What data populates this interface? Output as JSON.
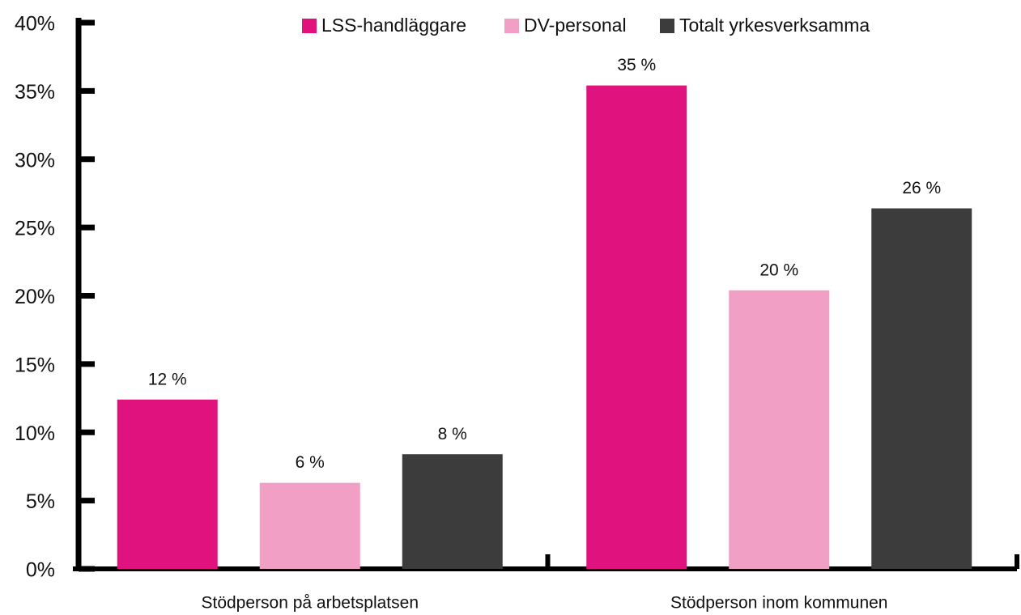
{
  "chart_data": {
    "type": "bar",
    "categories": [
      "Stödperson på arbetsplatsen",
      "Stödperson inom kommunen"
    ],
    "series": [
      {
        "name": "LSS-handläggare",
        "color": "#e0137e",
        "values": [
          12.4,
          35.4
        ],
        "value_labels": [
          "12 %",
          "35 %"
        ]
      },
      {
        "name": "DV-personal",
        "color": "#f29fc5",
        "values": [
          6.3,
          20.4
        ],
        "value_labels": [
          "6 %",
          "20 %"
        ]
      },
      {
        "name": "Totalt yrkesverksamma",
        "color": "#3c3c3c",
        "values": [
          8.4,
          26.4
        ],
        "value_labels": [
          "8 %",
          "26 %"
        ]
      }
    ],
    "ylim": [
      0,
      40
    ],
    "yticks": [
      {
        "value": 0,
        "label": "0%"
      },
      {
        "value": 5,
        "label": "5%"
      },
      {
        "value": 10,
        "label": "10%"
      },
      {
        "value": 15,
        "label": "15%"
      },
      {
        "value": 20,
        "label": "20%"
      },
      {
        "value": 25,
        "label": "25%"
      },
      {
        "value": 30,
        "label": "30%"
      },
      {
        "value": 35,
        "label": "35%"
      },
      {
        "value": 40,
        "label": "40%"
      }
    ],
    "legend": "top"
  }
}
